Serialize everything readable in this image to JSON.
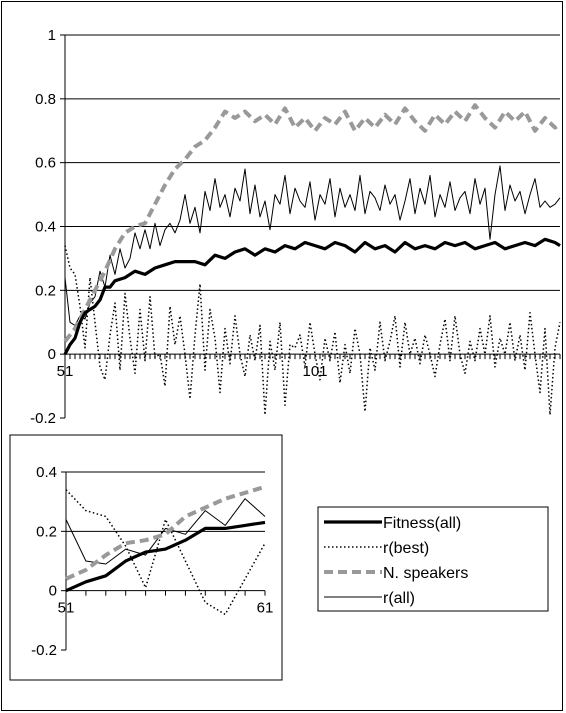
{
  "chart_data": [
    {
      "type": "line",
      "title": "",
      "xlabel": "",
      "ylabel": "",
      "ylim": [
        -0.2,
        1
      ],
      "xlim": [
        51,
        150
      ],
      "y_ticks": [
        "1",
        "0.8",
        "0.6",
        "0.4",
        "0.2",
        "0",
        "-0.2"
      ],
      "x_tick_labels": [
        {
          "x": 51,
          "label": "51"
        },
        {
          "x": 101,
          "label": "101"
        }
      ],
      "grid": true,
      "series": [
        {
          "name": "Fitness(all)",
          "x": [
            51,
            52,
            53,
            54,
            55,
            56,
            57,
            58,
            59,
            60,
            61,
            63,
            65,
            67,
            69,
            71,
            73,
            75,
            77,
            79,
            81,
            83,
            85,
            87,
            89,
            91,
            93,
            95,
            97,
            99,
            101,
            103,
            105,
            107,
            109,
            111,
            113,
            115,
            117,
            119,
            121,
            123,
            125,
            127,
            129,
            131,
            133,
            135,
            137,
            139,
            141,
            143,
            145,
            147,
            149,
            150
          ],
          "y": [
            0,
            0.03,
            0.05,
            0.1,
            0.13,
            0.14,
            0.15,
            0.17,
            0.21,
            0.21,
            0.23,
            0.24,
            0.26,
            0.25,
            0.27,
            0.28,
            0.29,
            0.29,
            0.29,
            0.28,
            0.31,
            0.3,
            0.32,
            0.33,
            0.31,
            0.33,
            0.32,
            0.34,
            0.33,
            0.35,
            0.34,
            0.33,
            0.35,
            0.34,
            0.32,
            0.35,
            0.33,
            0.34,
            0.32,
            0.35,
            0.33,
            0.34,
            0.33,
            0.35,
            0.34,
            0.35,
            0.33,
            0.34,
            0.35,
            0.33,
            0.34,
            0.35,
            0.34,
            0.36,
            0.35,
            0.34
          ]
        },
        {
          "name": "r(best)",
          "x": [
            51,
            52,
            53,
            54,
            55,
            56,
            57,
            58,
            59,
            60,
            61,
            62,
            63,
            64,
            65,
            66,
            67,
            68,
            69,
            70,
            71,
            72,
            73,
            74,
            75,
            76,
            77,
            78,
            79,
            80,
            81,
            82,
            83,
            84,
            85,
            86,
            87,
            88,
            89,
            90,
            91,
            92,
            93,
            94,
            95,
            96,
            97,
            98,
            99,
            100,
            101,
            102,
            103,
            104,
            105,
            106,
            107,
            108,
            109,
            110,
            111,
            112,
            113,
            114,
            115,
            116,
            117,
            118,
            119,
            120,
            121,
            122,
            123,
            124,
            125,
            126,
            127,
            128,
            129,
            130,
            131,
            132,
            133,
            134,
            135,
            136,
            137,
            138,
            139,
            140,
            141,
            142,
            143,
            144,
            145,
            146,
            147,
            148,
            149,
            150
          ],
          "y": [
            0.34,
            0.27,
            0.25,
            0.15,
            0.02,
            0.24,
            0.1,
            -0.04,
            -0.08,
            0.06,
            0.16,
            -0.05,
            0.19,
            0.05,
            -0.06,
            0.14,
            -0.02,
            0.18,
            -0.01,
            0.0,
            -0.1,
            0.15,
            0.03,
            0.12,
            0.0,
            -0.14,
            0.06,
            0.22,
            -0.05,
            0.14,
            0.05,
            -0.12,
            0.08,
            -0.03,
            0.12,
            0.0,
            -0.07,
            0.06,
            -0.02,
            0.09,
            -0.19,
            0.04,
            -0.05,
            0.1,
            -0.16,
            0.03,
            0.02,
            0.06,
            -0.04,
            0.1,
            0.0,
            -0.08,
            0.05,
            -0.02,
            0.07,
            -0.09,
            0.03,
            -0.06,
            0.08,
            0.0,
            -0.18,
            0.02,
            -0.05,
            0.1,
            -0.02,
            0.04,
            0.12,
            -0.04,
            0.1,
            0.0,
            0.05,
            -0.03,
            0.06,
            0.0,
            -0.07,
            0.03,
            0.11,
            -0.02,
            0.12,
            0.0,
            -0.06,
            0.04,
            -0.02,
            0.08,
            0.0,
            0.12,
            -0.04,
            0.05,
            0.0,
            0.1,
            -0.02,
            0.06,
            -0.05,
            0.13,
            0.0,
            -0.12,
            0.08,
            -0.19,
            0.02,
            0.1
          ]
        },
        {
          "name": "N. speakers",
          "x": [
            51,
            53,
            55,
            57,
            59,
            61,
            63,
            65,
            67,
            69,
            71,
            73,
            75,
            77,
            79,
            81,
            83,
            85,
            87,
            89,
            91,
            93,
            95,
            97,
            99,
            101,
            103,
            105,
            107,
            109,
            111,
            113,
            115,
            117,
            119,
            121,
            123,
            125,
            127,
            129,
            131,
            133,
            135,
            137,
            139,
            141,
            143,
            145,
            147,
            149,
            150
          ],
          "y": [
            0.04,
            0.08,
            0.14,
            0.2,
            0.26,
            0.33,
            0.38,
            0.4,
            0.41,
            0.47,
            0.53,
            0.58,
            0.61,
            0.65,
            0.67,
            0.71,
            0.76,
            0.74,
            0.76,
            0.73,
            0.75,
            0.72,
            0.77,
            0.71,
            0.74,
            0.7,
            0.74,
            0.72,
            0.76,
            0.7,
            0.74,
            0.71,
            0.75,
            0.72,
            0.77,
            0.73,
            0.7,
            0.75,
            0.72,
            0.76,
            0.73,
            0.78,
            0.74,
            0.71,
            0.76,
            0.73,
            0.76,
            0.7,
            0.74,
            0.71,
            0.72
          ]
        },
        {
          "name": "r(all)",
          "x": [
            51,
            52,
            53,
            54,
            55,
            56,
            57,
            58,
            59,
            60,
            61,
            62,
            63,
            64,
            65,
            66,
            67,
            68,
            69,
            70,
            71,
            72,
            73,
            74,
            75,
            76,
            77,
            78,
            79,
            80,
            81,
            82,
            83,
            84,
            85,
            86,
            87,
            88,
            89,
            90,
            91,
            92,
            93,
            94,
            95,
            96,
            97,
            98,
            99,
            100,
            101,
            102,
            103,
            104,
            105,
            106,
            107,
            108,
            109,
            110,
            111,
            112,
            113,
            114,
            115,
            116,
            117,
            118,
            119,
            120,
            121,
            122,
            123,
            124,
            125,
            126,
            127,
            128,
            129,
            130,
            131,
            132,
            133,
            134,
            135,
            136,
            137,
            138,
            139,
            140,
            141,
            142,
            143,
            144,
            145,
            146,
            147,
            148,
            149,
            150
          ],
          "y": [
            0.24,
            0.1,
            0.09,
            0.12,
            0.11,
            0.16,
            0.18,
            0.26,
            0.21,
            0.31,
            0.25,
            0.33,
            0.27,
            0.3,
            0.38,
            0.33,
            0.39,
            0.33,
            0.41,
            0.34,
            0.39,
            0.41,
            0.38,
            0.42,
            0.5,
            0.41,
            0.46,
            0.38,
            0.51,
            0.45,
            0.55,
            0.46,
            0.5,
            0.43,
            0.52,
            0.48,
            0.58,
            0.44,
            0.53,
            0.43,
            0.48,
            0.39,
            0.5,
            0.47,
            0.56,
            0.44,
            0.52,
            0.48,
            0.46,
            0.54,
            0.42,
            0.5,
            0.47,
            0.55,
            0.43,
            0.52,
            0.46,
            0.5,
            0.45,
            0.56,
            0.44,
            0.51,
            0.49,
            0.45,
            0.53,
            0.47,
            0.5,
            0.42,
            0.48,
            0.55,
            0.44,
            0.52,
            0.47,
            0.56,
            0.43,
            0.5,
            0.46,
            0.54,
            0.45,
            0.49,
            0.51,
            0.44,
            0.55,
            0.47,
            0.52,
            0.36,
            0.5,
            0.59,
            0.45,
            0.53,
            0.48,
            0.51,
            0.44,
            0.5,
            0.55,
            0.46,
            0.48,
            0.46,
            0.47,
            0.49
          ]
        }
      ]
    },
    {
      "type": "line",
      "title": "",
      "xlabel": "",
      "ylabel": "",
      "ylim": [
        -0.2,
        0.4
      ],
      "xlim": [
        51,
        61
      ],
      "y_ticks": [
        "0.4",
        "0.2",
        "0",
        "-0.2"
      ],
      "x_tick_labels": [
        {
          "x": 51,
          "label": "51"
        },
        {
          "x": 61,
          "label": "61"
        }
      ],
      "grid": true,
      "series": [
        {
          "name": "Fitness(all)",
          "x": [
            51,
            52,
            53,
            54,
            55,
            56,
            57,
            58,
            59,
            60,
            61
          ],
          "y": [
            0,
            0.03,
            0.05,
            0.1,
            0.13,
            0.14,
            0.17,
            0.21,
            0.21,
            0.22,
            0.23
          ]
        },
        {
          "name": "r(best)",
          "x": [
            51,
            52,
            53,
            54,
            55,
            56,
            57,
            58,
            59,
            60,
            61
          ],
          "y": [
            0.34,
            0.27,
            0.25,
            0.15,
            0.01,
            0.24,
            0.1,
            -0.04,
            -0.08,
            0.04,
            0.16
          ]
        },
        {
          "name": "N. speakers",
          "x": [
            51,
            52,
            53,
            54,
            55,
            56,
            57,
            58,
            59,
            60,
            61
          ],
          "y": [
            0.04,
            0.07,
            0.12,
            0.16,
            0.17,
            0.19,
            0.25,
            0.28,
            0.31,
            0.33,
            0.35
          ]
        },
        {
          "name": "r(all)",
          "x": [
            51,
            52,
            53,
            54,
            55,
            56,
            57,
            58,
            59,
            60,
            61
          ],
          "y": [
            0.24,
            0.1,
            0.09,
            0.14,
            0.12,
            0.21,
            0.19,
            0.27,
            0.22,
            0.31,
            0.25
          ]
        }
      ]
    }
  ],
  "legend": {
    "placement": "lower-right",
    "entries": [
      {
        "label": "Fitness(all)",
        "style": "thick-solid",
        "color": "#000000"
      },
      {
        "label": "r(best)",
        "style": "dotted",
        "color": "#000000"
      },
      {
        "label": "N. speakers",
        "style": "thick-dashed",
        "color": "#999999"
      },
      {
        "label": "r(all)",
        "style": "thin-solid",
        "color": "#000000"
      }
    ]
  },
  "colors": {
    "gridline": "#000000",
    "speakers": "#999999",
    "ink": "#000000"
  }
}
